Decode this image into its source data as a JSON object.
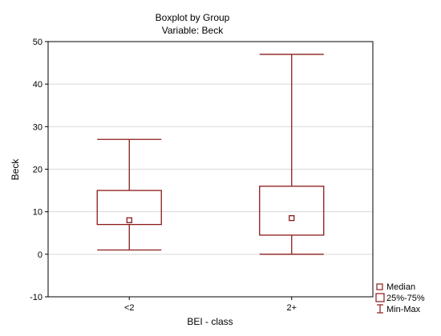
{
  "chart_data": {
    "type": "boxplot",
    "title": "Boxplot by Group",
    "subtitle": "Variable: Beck",
    "xlabel": "BEI - class",
    "ylabel": "Beck",
    "ylim": [
      -10,
      50
    ],
    "yticks": [
      -10,
      0,
      10,
      20,
      30,
      40,
      50
    ],
    "grid": true,
    "legend_position": "bottom-right",
    "color": "#8b1a1a",
    "categories": [
      "<2",
      "2+"
    ],
    "boxes": [
      {
        "category": "<2",
        "min": 1,
        "q1": 7,
        "median": 8,
        "q3": 15,
        "max": 27
      },
      {
        "category": "2+",
        "min": 0,
        "q1": 4.5,
        "median": 8.5,
        "q3": 16,
        "max": 47
      }
    ],
    "legend": [
      {
        "label": "Median",
        "symbol": "small-square-icon"
      },
      {
        "label": "25%-75%",
        "symbol": "box-icon"
      },
      {
        "label": "Min-Max",
        "symbol": "whisker-icon"
      }
    ]
  }
}
